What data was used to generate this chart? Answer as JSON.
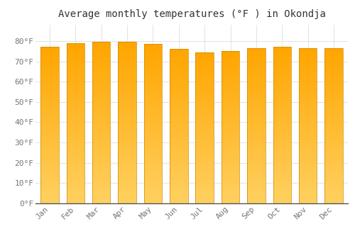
{
  "months": [
    "Jan",
    "Feb",
    "Mar",
    "Apr",
    "May",
    "Jun",
    "Jul",
    "Aug",
    "Sep",
    "Oct",
    "Nov",
    "Dec"
  ],
  "values": [
    77.2,
    78.8,
    79.7,
    79.7,
    78.4,
    76.1,
    74.5,
    75.2,
    76.5,
    77.2,
    76.6,
    76.6
  ],
  "bar_color_top": "#FFA500",
  "bar_color_bottom": "#FFD060",
  "bar_edge_color": "#CC8800",
  "title": "Average monthly temperatures (°F ) in Okondja",
  "ylim": [
    0,
    88
  ],
  "yticks": [
    0,
    10,
    20,
    30,
    40,
    50,
    60,
    70,
    80
  ],
  "ytick_labels": [
    "0°F",
    "10°F",
    "20°F",
    "30°F",
    "40°F",
    "50°F",
    "60°F",
    "70°F",
    "80°F"
  ],
  "background_color": "#FFFFFF",
  "grid_color": "#DDDDDD",
  "title_fontsize": 10,
  "tick_fontsize": 8,
  "bar_width": 0.7
}
